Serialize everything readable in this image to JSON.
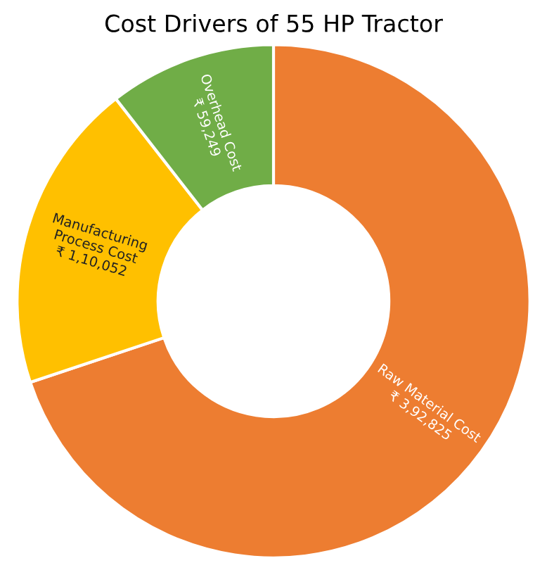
{
  "chart_data": {
    "type": "donut",
    "title": "Cost Drivers of 55 HP Tractor",
    "categories": [
      "Raw Material Cost",
      "Manufacturing\nProcess Cost",
      "Overhead Cost"
    ],
    "values": [
      392825,
      110052,
      59249
    ],
    "value_labels": [
      "₹ 3,92,825",
      "₹ 1,10,052",
      "₹ 59,249"
    ],
    "colors": [
      "#ed7d31",
      "#ffc000",
      "#70ad47"
    ],
    "legend": false
  }
}
